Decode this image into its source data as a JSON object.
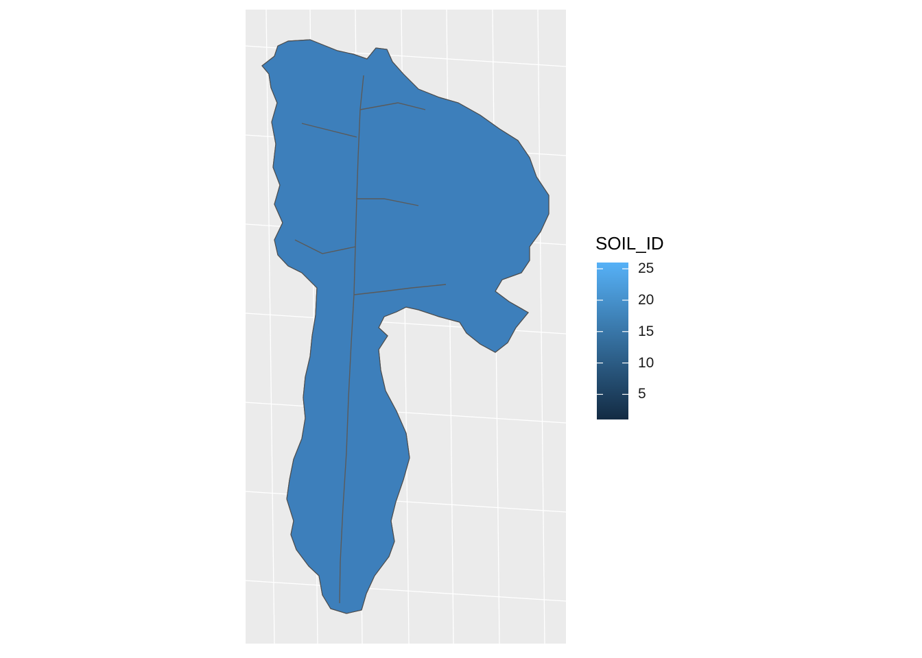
{
  "legend": {
    "title": "SOIL_ID",
    "min": 1,
    "max": 26,
    "ticks": [
      {
        "value": 25,
        "label": "25"
      },
      {
        "value": 20,
        "label": "20"
      },
      {
        "value": 15,
        "label": "15"
      },
      {
        "value": 10,
        "label": "10"
      },
      {
        "value": 5,
        "label": "5"
      }
    ],
    "low_color": "#132B43",
    "high_color": "#56B1F7"
  },
  "colors": {
    "panel_background": "#EBEBEB",
    "grid_line": "#FFFFFF",
    "polygon_border": "#595959"
  }
}
